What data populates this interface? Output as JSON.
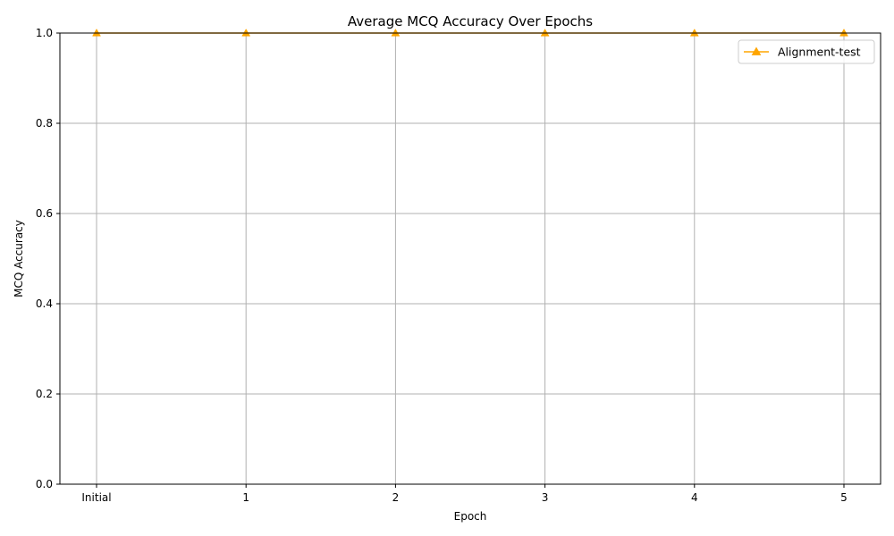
{
  "chart_data": {
    "type": "line",
    "title": "Average MCQ Accuracy Over Epochs",
    "xlabel": "Epoch",
    "ylabel": "MCQ Accuracy",
    "categories": [
      "Initial",
      "1",
      "2",
      "3",
      "4",
      "5"
    ],
    "ylim": [
      0,
      1.0
    ],
    "yticks": [
      "0.0",
      "0.2",
      "0.4",
      "0.6",
      "0.8",
      "1.0"
    ],
    "grid": true,
    "legend_position": "top-right",
    "series": [
      {
        "name": "Alignment-test",
        "color": "#ffa500",
        "marker": "triangle",
        "values": [
          1.0,
          1.0,
          1.0,
          1.0,
          1.0,
          1.0
        ]
      }
    ]
  }
}
